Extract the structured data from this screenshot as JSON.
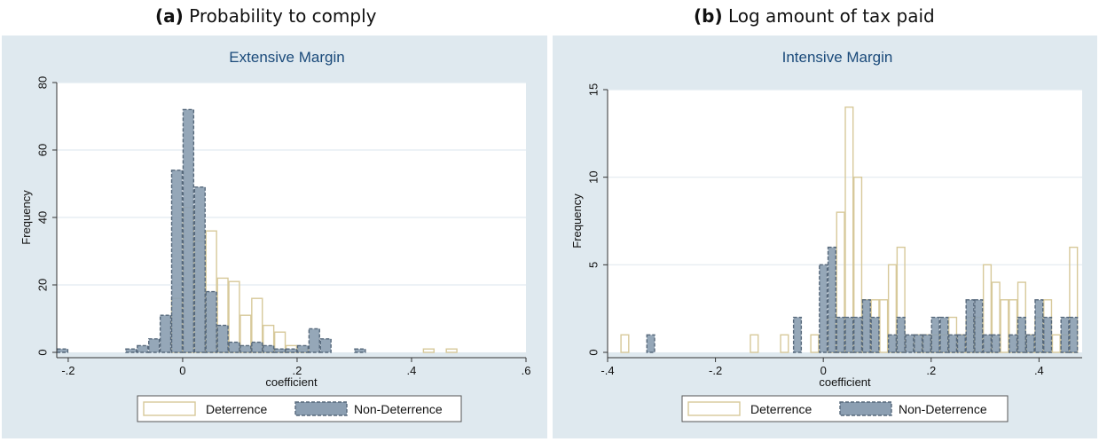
{
  "captions": [
    {
      "tag": "(a)",
      "text": "Probability to comply"
    },
    {
      "tag": "(b)",
      "text": "Log amount of tax paid"
    }
  ],
  "colors": {
    "background": "#dfe9ef",
    "plot_area": "#ffffff",
    "title": "#1a4a7a",
    "deterrence_outline": "#d7c99a",
    "non_deterrence_fill": "#8c9fb2",
    "non_deterrence_outline": "#56687b",
    "grid": "#e2eaf0"
  },
  "chart_data": [
    {
      "type": "bar",
      "title": "Extensive Margin",
      "xlabel": "coefficient",
      "ylabel": "Frequency",
      "xlim": [
        -0.22,
        0.6
      ],
      "ylim": [
        0,
        80
      ],
      "x_ticks": [
        -0.2,
        0,
        0.2,
        0.4,
        0.6
      ],
      "x_tick_labels": [
        "-.2",
        "0",
        ".2",
        ".4",
        ".6"
      ],
      "y_ticks": [
        0,
        20,
        40,
        60,
        80
      ],
      "y_tick_labels": [
        "0",
        "20",
        "40",
        "60",
        "80"
      ],
      "grid": true,
      "legend": {
        "position": "bottom",
        "entries": [
          "Deterrence",
          "Non-Deterrence"
        ]
      },
      "bin_width": 0.02,
      "series": [
        {
          "name": "Deterrence",
          "style": "outline",
          "x": [
            -0.01,
            0.01,
            0.03,
            0.05,
            0.07,
            0.09,
            0.11,
            0.13,
            0.15,
            0.17,
            0.19,
            0.21,
            0.43,
            0.47
          ],
          "values": [
            16,
            43,
            33,
            36,
            22,
            21,
            11,
            16,
            8,
            6,
            2,
            1,
            1,
            1
          ]
        },
        {
          "name": "Non-Deterrence",
          "style": "filled",
          "x": [
            -0.21,
            -0.09,
            -0.07,
            -0.05,
            -0.03,
            -0.01,
            0.01,
            0.03,
            0.05,
            0.07,
            0.09,
            0.11,
            0.13,
            0.15,
            0.17,
            0.19,
            0.21,
            0.23,
            0.25,
            0.31
          ],
          "values": [
            1,
            1,
            2,
            4,
            11,
            54,
            72,
            49,
            18,
            8,
            3,
            2,
            3,
            2,
            1,
            1,
            2,
            7,
            4,
            1
          ]
        }
      ]
    },
    {
      "type": "bar",
      "title": "Intensive Margin",
      "xlabel": "coefficient",
      "ylabel": "Frequency",
      "xlim": [
        -0.4,
        0.48
      ],
      "ylim": [
        0,
        15
      ],
      "x_ticks": [
        -0.4,
        -0.2,
        0,
        0.2,
        0.4
      ],
      "x_tick_labels": [
        "-.4",
        "-.2",
        "0",
        ".2",
        ".4"
      ],
      "y_ticks": [
        0,
        5,
        10,
        15
      ],
      "y_tick_labels": [
        "0",
        "5",
        "10",
        "15"
      ],
      "grid": true,
      "legend": {
        "position": "bottom",
        "entries": [
          "Deterrence",
          "Non-Deterrence"
        ]
      },
      "bin_width": 0.016,
      "series": [
        {
          "name": "Deterrence",
          "style": "outline",
          "x": [
            -0.368,
            -0.128,
            -0.072,
            -0.016,
            0.016,
            0.032,
            0.048,
            0.064,
            0.08,
            0.096,
            0.112,
            0.128,
            0.144,
            0.176,
            0.192,
            0.208,
            0.224,
            0.24,
            0.256,
            0.272,
            0.288,
            0.304,
            0.32,
            0.336,
            0.352,
            0.368,
            0.384,
            0.4,
            0.416,
            0.432,
            0.448,
            0.464
          ],
          "values": [
            1,
            1,
            1,
            1,
            2,
            8,
            14,
            10,
            3,
            3,
            3,
            5,
            6,
            1,
            1,
            1,
            1,
            2,
            1,
            2,
            2,
            5,
            4,
            3,
            3,
            4,
            1,
            2,
            3,
            1,
            1,
            6
          ]
        },
        {
          "name": "Non-Deterrence",
          "style": "filled",
          "x": [
            -0.32,
            -0.048,
            0.0,
            0.016,
            0.032,
            0.048,
            0.064,
            0.08,
            0.096,
            0.128,
            0.144,
            0.16,
            0.176,
            0.192,
            0.208,
            0.224,
            0.24,
            0.256,
            0.272,
            0.288,
            0.304,
            0.32,
            0.352,
            0.368,
            0.384,
            0.4,
            0.416,
            0.448,
            0.464
          ],
          "values": [
            1,
            2,
            5,
            6,
            2,
            2,
            2,
            3,
            2,
            1,
            2,
            1,
            1,
            1,
            2,
            2,
            1,
            1,
            3,
            3,
            1,
            1,
            1,
            2,
            1,
            3,
            2,
            2,
            2
          ]
        }
      ]
    }
  ]
}
